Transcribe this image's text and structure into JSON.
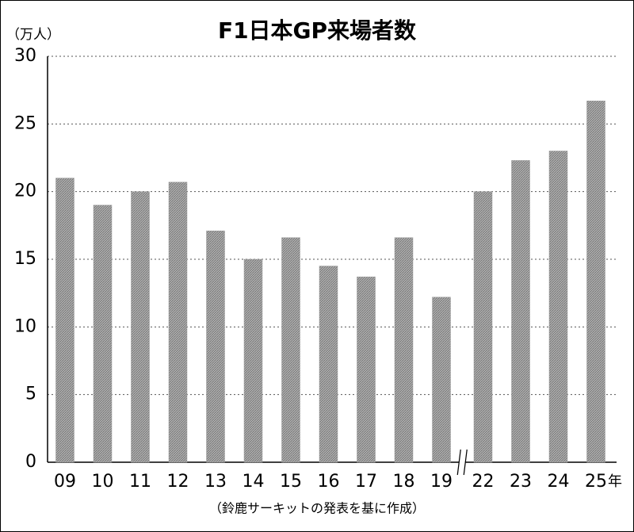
{
  "chart_data": {
    "type": "bar",
    "title": "F1日本GP来場者数",
    "y_unit": "（万人）",
    "x_unit": "年",
    "source": "（鈴鹿サーキットの発表を基に作成）",
    "categories": [
      "09",
      "10",
      "11",
      "12",
      "13",
      "14",
      "15",
      "16",
      "17",
      "18",
      "19",
      "22",
      "23",
      "24",
      "25"
    ],
    "values": [
      21.0,
      19.0,
      20.0,
      20.7,
      17.1,
      15.0,
      16.6,
      14.5,
      13.7,
      16.6,
      12.2,
      20.0,
      22.3,
      23.0,
      26.7
    ],
    "color": "#9a9a9a",
    "ylim": [
      0,
      30
    ],
    "yticks": [
      0,
      5,
      10,
      15,
      20,
      25,
      30
    ],
    "grid": true
  }
}
